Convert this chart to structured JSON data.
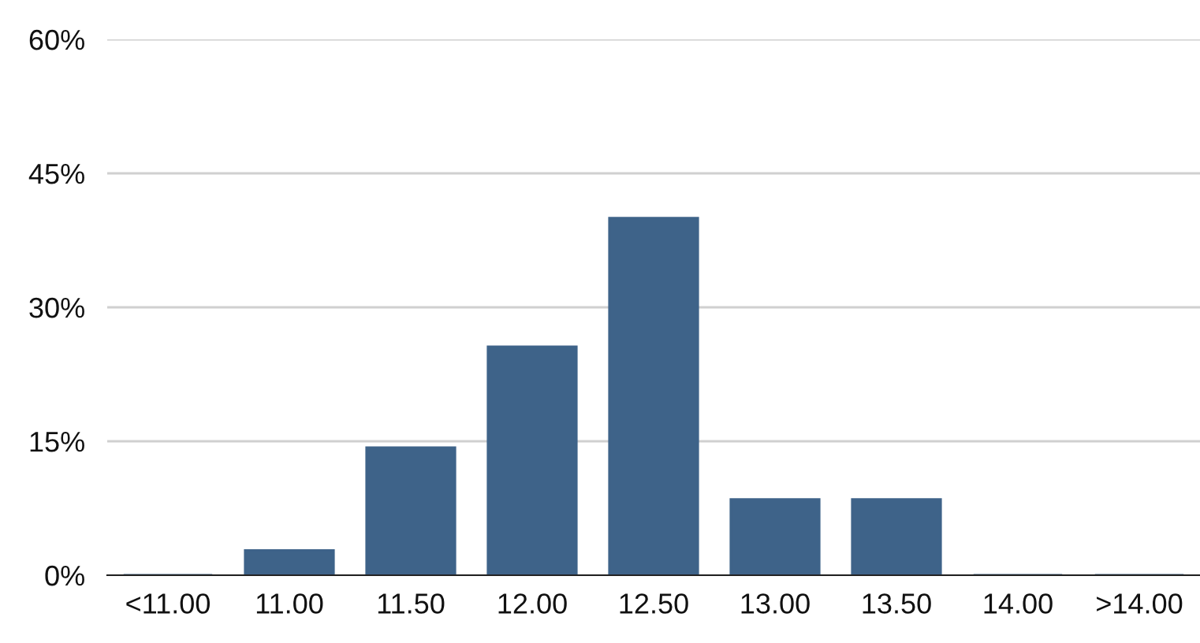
{
  "chart_data": {
    "type": "bar",
    "categories": [
      "<11.00",
      "11.00",
      "11.50",
      "12.00",
      "12.50",
      "13.00",
      "13.50",
      "14.00",
      ">14.00"
    ],
    "values": [
      0,
      2.8,
      14.3,
      25.6,
      40.0,
      8.5,
      8.5,
      0,
      0
    ],
    "color": "#3e6389",
    "ylim": [
      0,
      60
    ],
    "yticks": [
      {
        "value": 0,
        "label": "0%"
      },
      {
        "value": 15,
        "label": "15%"
      },
      {
        "value": 30,
        "label": "30%"
      },
      {
        "value": 45,
        "label": "45%"
      },
      {
        "value": 60,
        "label": "60%"
      }
    ],
    "grid": "y"
  }
}
